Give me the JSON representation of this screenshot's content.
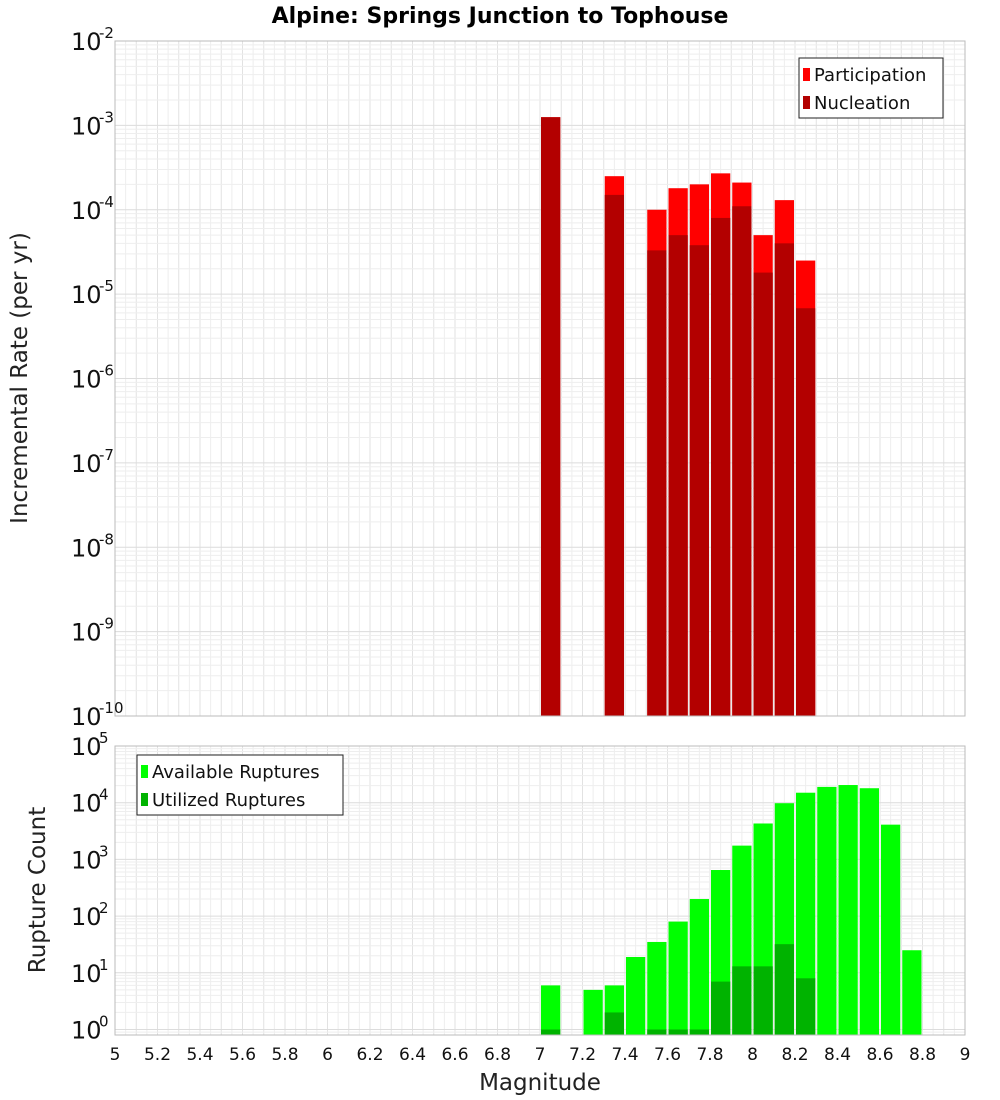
{
  "chart_data": [
    {
      "type": "bar",
      "title": "Alpine: Springs Junction to Tophouse",
      "xlabel": "",
      "ylabel": "Incremental Rate (per yr)",
      "yscale": "log",
      "ylim": [
        1e-10,
        0.01
      ],
      "xlim": [
        5,
        9
      ],
      "bar_width": 0.1,
      "grid": true,
      "legend_position": "top-right",
      "series": [
        {
          "name": "Participation",
          "color": "#ff0000",
          "points": [
            {
              "x": 7.05,
              "y": 0.00125
            },
            {
              "x": 7.35,
              "y": 0.00025
            },
            {
              "x": 7.55,
              "y": 0.0001
            },
            {
              "x": 7.65,
              "y": 0.00018
            },
            {
              "x": 7.75,
              "y": 0.0002
            },
            {
              "x": 7.85,
              "y": 0.00027
            },
            {
              "x": 7.95,
              "y": 0.00021
            },
            {
              "x": 8.05,
              "y": 5e-05
            },
            {
              "x": 8.15,
              "y": 0.00013
            },
            {
              "x": 8.25,
              "y": 2.5e-05
            }
          ]
        },
        {
          "name": "Nucleation",
          "color": "#b30000",
          "points": [
            {
              "x": 7.05,
              "y": 0.00125
            },
            {
              "x": 7.35,
              "y": 0.00015
            },
            {
              "x": 7.55,
              "y": 3.3e-05
            },
            {
              "x": 7.65,
              "y": 5e-05
            },
            {
              "x": 7.75,
              "y": 3.8e-05
            },
            {
              "x": 7.85,
              "y": 8e-05
            },
            {
              "x": 7.95,
              "y": 0.00011
            },
            {
              "x": 8.05,
              "y": 1.8e-05
            },
            {
              "x": 8.15,
              "y": 4e-05
            },
            {
              "x": 8.25,
              "y": 6.8e-06
            }
          ]
        }
      ]
    },
    {
      "type": "bar",
      "title": "",
      "xlabel": "Magnitude",
      "ylabel": "Rupture Count",
      "yscale": "log",
      "ylim": [
        0.8,
        100000.0
      ],
      "xlim": [
        5,
        9
      ],
      "bar_width": 0.1,
      "grid": true,
      "legend_position": "top-left",
      "x_ticks": [
        "5",
        "5.2",
        "5.4",
        "5.6",
        "5.8",
        "6",
        "6.2",
        "6.4",
        "6.6",
        "6.8",
        "7",
        "7.2",
        "7.4",
        "7.6",
        "7.8",
        "8",
        "8.2",
        "8.4",
        "8.6",
        "8.8",
        "9"
      ],
      "series": [
        {
          "name": "Available Ruptures",
          "color": "#00ff00",
          "points": [
            {
              "x": 7.05,
              "y": 6
            },
            {
              "x": 7.25,
              "y": 5
            },
            {
              "x": 7.35,
              "y": 6
            },
            {
              "x": 7.45,
              "y": 19
            },
            {
              "x": 7.55,
              "y": 35
            },
            {
              "x": 7.65,
              "y": 80
            },
            {
              "x": 7.75,
              "y": 200
            },
            {
              "x": 7.85,
              "y": 650
            },
            {
              "x": 7.95,
              "y": 1750
            },
            {
              "x": 8.05,
              "y": 4300
            },
            {
              "x": 8.15,
              "y": 9800
            },
            {
              "x": 8.25,
              "y": 15000
            },
            {
              "x": 8.35,
              "y": 19000
            },
            {
              "x": 8.45,
              "y": 20500
            },
            {
              "x": 8.55,
              "y": 18000
            },
            {
              "x": 8.65,
              "y": 4100
            },
            {
              "x": 8.75,
              "y": 25
            }
          ]
        },
        {
          "name": "Utilized Ruptures",
          "color": "#00b300",
          "points": [
            {
              "x": 7.05,
              "y": 1
            },
            {
              "x": 7.35,
              "y": 2
            },
            {
              "x": 7.55,
              "y": 1
            },
            {
              "x": 7.65,
              "y": 1
            },
            {
              "x": 7.75,
              "y": 1
            },
            {
              "x": 7.85,
              "y": 7
            },
            {
              "x": 7.95,
              "y": 13
            },
            {
              "x": 8.05,
              "y": 13
            },
            {
              "x": 8.15,
              "y": 32
            },
            {
              "x": 8.25,
              "y": 8
            }
          ]
        }
      ]
    }
  ]
}
